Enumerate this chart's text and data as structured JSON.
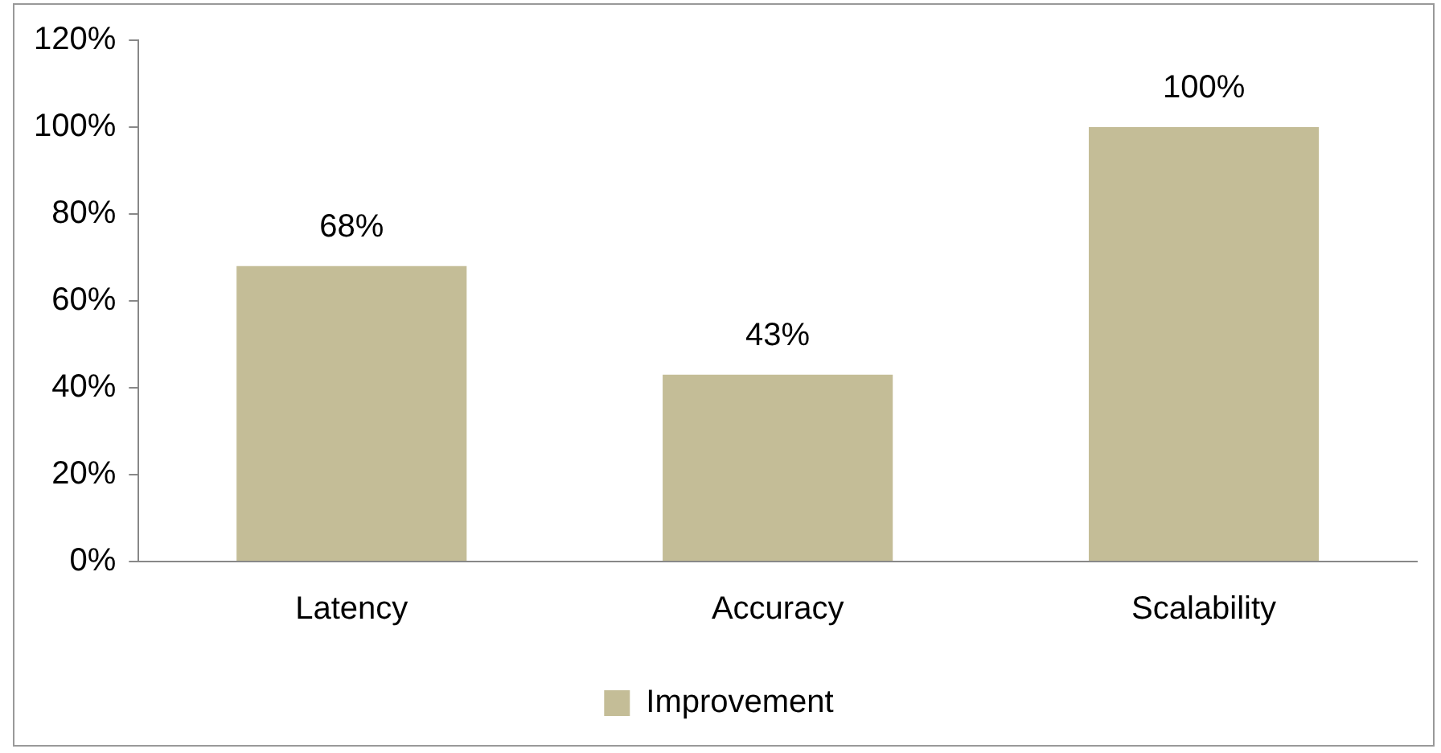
{
  "chart_data": {
    "type": "bar",
    "categories": [
      "Latency",
      "Accuracy",
      "Scalability"
    ],
    "series": [
      {
        "name": "Improvement",
        "color": "#c4bd97",
        "values": [
          68,
          43,
          100
        ],
        "value_labels": [
          "68%",
          "43%",
          "100%"
        ]
      }
    ],
    "ylim": [
      0,
      120
    ],
    "yticks": [
      {
        "value": 0,
        "label": "0%"
      },
      {
        "value": 20,
        "label": "20%"
      },
      {
        "value": 40,
        "label": "40%"
      },
      {
        "value": 60,
        "label": "60%"
      },
      {
        "value": 80,
        "label": "80%"
      },
      {
        "value": 100,
        "label": "100%"
      },
      {
        "value": 120,
        "label": "120%"
      }
    ],
    "grid": false,
    "legend": "bottom"
  }
}
